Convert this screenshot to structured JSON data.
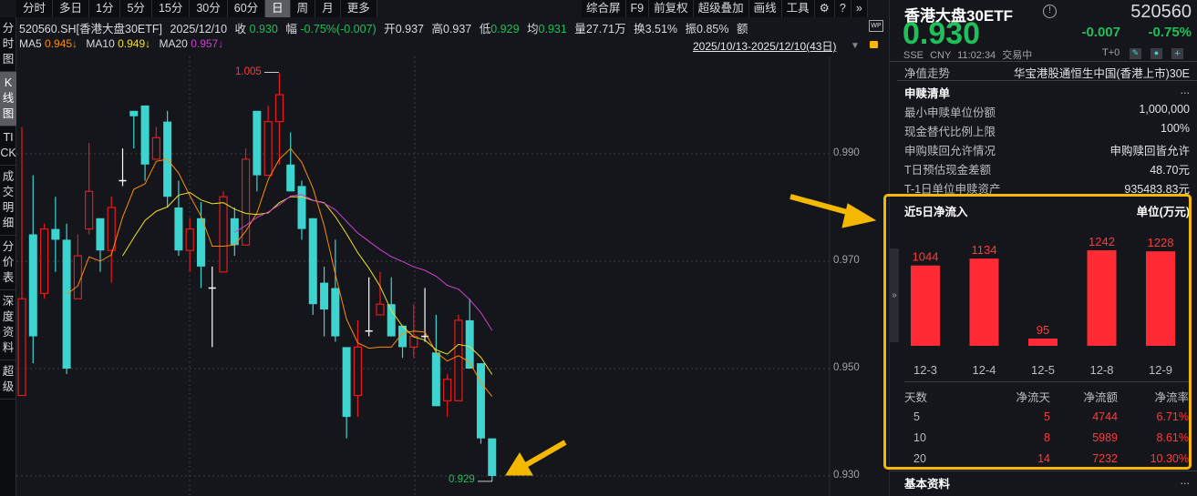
{
  "period_tabs": [
    "分时",
    "多日",
    "1分",
    "5分",
    "15分",
    "30分",
    "60分",
    "日",
    "周",
    "月",
    "更多"
  ],
  "active_period": "日",
  "tools": [
    "综合屏",
    "F9",
    "前复权",
    "超级叠加",
    "画线",
    "工具"
  ],
  "tool_icons": [
    "gear-icon",
    "help-icon",
    "expand-icon"
  ],
  "sidebar": [
    "分时图",
    "K线图",
    "TICK",
    "成交明细",
    "分价表",
    "深度资料",
    "超级"
  ],
  "active_sidebar": "K线图",
  "info": {
    "code": "520560.SH[香港大盘30ETF]",
    "date": "2025/12/10",
    "close_label": "收",
    "close": "0.930",
    "chg_label": "幅",
    "chg": "-0.75%(-0.007)",
    "open_label": "开",
    "open": "0.937",
    "high_label": "高",
    "high": "0.937",
    "low_label": "低",
    "low": "0.929",
    "avg_label": "均",
    "avg": "0.931",
    "vol_label": "量",
    "vol": "27.71万",
    "turn_label": "换",
    "turn": "3.51%",
    "amp_label": "振",
    "amp": "0.85%",
    "amt_label": "额"
  },
  "ma": {
    "ma5_label": "MA5",
    "ma5": "0.945↓",
    "ma10_label": "MA10",
    "ma10": "0.949↓",
    "ma20_label": "MA20",
    "ma20": "0.957↓",
    "colors": {
      "ma5": "#ff8c00",
      "ma10": "#f0e020",
      "ma20": "#d040d0"
    }
  },
  "date_range": "2025/10/13-2025/12/10(43日)",
  "chart_data": {
    "type": "candlestick",
    "ylim": [
      0.927,
      1.008
    ],
    "yticks": [
      "0.990",
      "0.970",
      "0.950",
      "0.930"
    ],
    "max_label": "1.005",
    "min_label": "0.929",
    "ohlc": [
      [
        0.945,
        0.995,
        0.945,
        0.963
      ],
      [
        0.975,
        0.986,
        0.951,
        0.956
      ],
      [
        0.964,
        0.977,
        0.963,
        0.976
      ],
      [
        0.976,
        0.982,
        0.968,
        0.974
      ],
      [
        0.974,
        0.977,
        0.949,
        0.95
      ],
      [
        0.963,
        0.975,
        0.963,
        0.971
      ],
      [
        0.976,
        0.992,
        0.975,
        0.983
      ],
      [
        0.978,
        0.978,
        0.968,
        0.972
      ],
      [
        0.972,
        0.982,
        0.966,
        0.98
      ],
      [
        0.985,
        0.991,
        0.984,
        0.985
      ],
      [
        0.998,
        0.998,
        0.991,
        0.997
      ],
      [
        0.999,
        0.999,
        0.985,
        0.988
      ],
      [
        0.989,
        0.995,
        0.989,
        0.993
      ],
      [
        0.996,
        0.998,
        0.98,
        0.982
      ],
      [
        0.98,
        0.985,
        0.971,
        0.972
      ],
      [
        0.972,
        0.978,
        0.968,
        0.976
      ],
      [
        0.978,
        0.981,
        0.965,
        0.969
      ],
      [
        0.965,
        0.969,
        0.954,
        0.965
      ],
      [
        0.968,
        0.983,
        0.968,
        0.982
      ],
      [
        0.978,
        0.98,
        0.971,
        0.973
      ],
      [
        0.973,
        0.991,
        0.973,
        0.989
      ],
      [
        0.998,
        0.998,
        0.983,
        0.986
      ],
      [
        0.986,
        0.999,
        0.986,
        0.996
      ],
      [
        0.996,
        1.005,
        0.988,
        1.001
      ],
      [
        0.988,
        0.994,
        0.983,
        0.983
      ],
      [
        0.984,
        0.985,
        0.974,
        0.976
      ],
      [
        0.978,
        0.978,
        0.96,
        0.962
      ],
      [
        0.966,
        0.969,
        0.956,
        0.961
      ],
      [
        0.965,
        0.974,
        0.955,
        0.956
      ],
      [
        0.954,
        0.954,
        0.937,
        0.941
      ],
      [
        0.945,
        0.959,
        0.941,
        0.954
      ],
      [
        0.957,
        0.967,
        0.956,
        0.957
      ],
      [
        0.96,
        0.968,
        0.96,
        0.962
      ],
      [
        0.962,
        0.967,
        0.956,
        0.956
      ],
      [
        0.958,
        0.958,
        0.952,
        0.954
      ],
      [
        0.954,
        0.962,
        0.952,
        0.956
      ],
      [
        0.956,
        0.965,
        0.955,
        0.956
      ],
      [
        0.953,
        0.96,
        0.943,
        0.943
      ],
      [
        0.944,
        0.949,
        0.941,
        0.948
      ],
      [
        0.944,
        0.96,
        0.944,
        0.959
      ],
      [
        0.959,
        0.963,
        0.95,
        0.95
      ],
      [
        0.951,
        0.951,
        0.936,
        0.937
      ],
      [
        0.937,
        0.937,
        0.929,
        0.93
      ]
    ],
    "colors": {
      "up": "#e8191b",
      "down": "#3dd4d0",
      "flat": "#ffffff"
    }
  },
  "quote": {
    "name": "香港大盘30ETF",
    "code": "520560",
    "price": "0.930",
    "chg": "-0.007",
    "pct": "-0.75%",
    "exchange": "SSE",
    "currency": "CNY",
    "time": "11:02:34",
    "status": "交易中",
    "t0": "T+0"
  },
  "nav": {
    "label": "净值走势",
    "value": "华宝港股通恒生中国(香港上市)30E"
  },
  "creation": {
    "title": "申赎清单",
    "more": "...",
    "rows": [
      {
        "k": "最小申赎单位份额",
        "v": "1,000,000"
      },
      {
        "k": "现金替代比例上限",
        "v": "100%"
      },
      {
        "k": "申购赎回允许情况",
        "v": "申购赎回皆允许"
      },
      {
        "k": "T日预估现金差额",
        "v": "48.70元"
      },
      {
        "k": "T-1日单位申赎资产",
        "v": "935483.83元"
      }
    ]
  },
  "netflow": {
    "title": "近5日净流入",
    "unit": "单位(万元)",
    "chart_data": {
      "type": "bar",
      "categories": [
        "12-3",
        "12-4",
        "12-5",
        "12-8",
        "12-9"
      ],
      "values": [
        1044,
        1134,
        95,
        1242,
        1228
      ],
      "color": "#ff2a33"
    },
    "headers": [
      "天数",
      "净流天",
      "净流额",
      "净流率"
    ],
    "rows": [
      [
        "5",
        "5",
        "4744",
        "6.71%"
      ],
      [
        "10",
        "8",
        "5989",
        "8.61%"
      ],
      [
        "20",
        "14",
        "7232",
        "10.30%"
      ]
    ]
  },
  "basic": {
    "title": "基本资料",
    "more": "..."
  }
}
